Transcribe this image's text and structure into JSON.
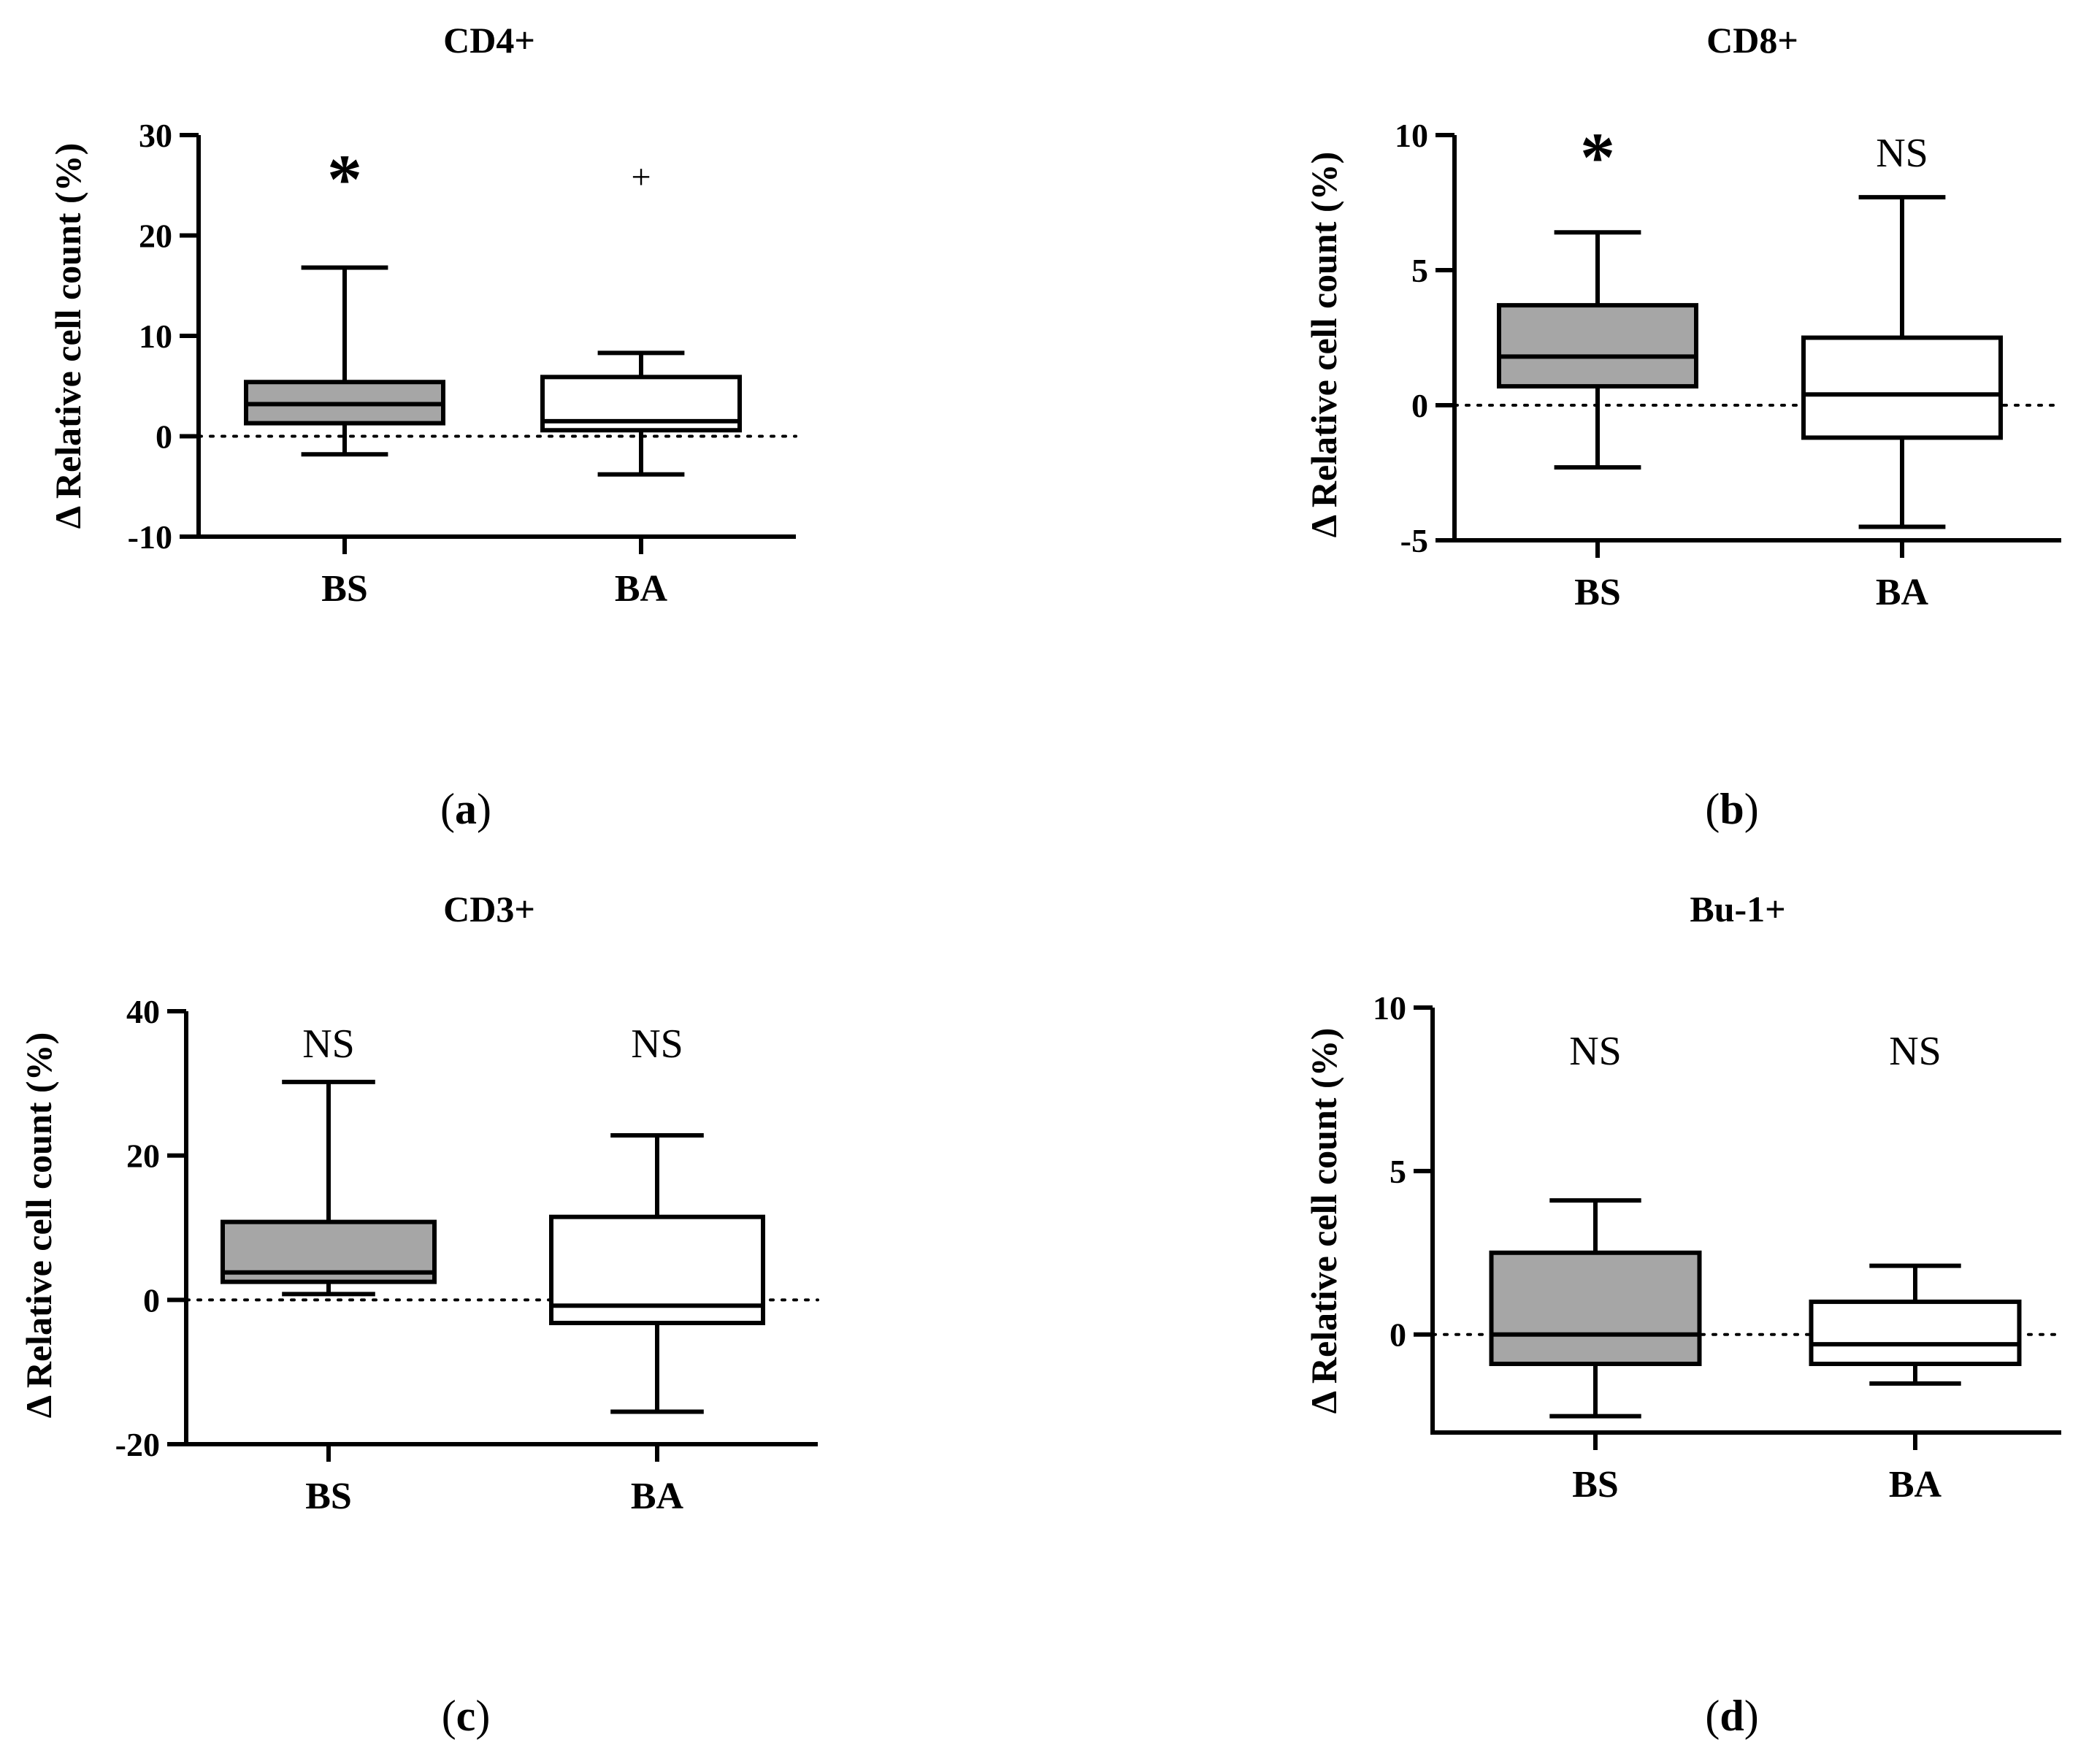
{
  "figure": {
    "panel_labels": [
      "a",
      "b",
      "c",
      "d"
    ],
    "colors": {
      "bs_fill": "#a6a6a6",
      "ba_fill": "#ffffff",
      "stroke": "#000000"
    }
  },
  "chart_data": [
    {
      "type": "boxplot",
      "panel": "a",
      "title": "CD4+",
      "ylabel": "Δ Relative cell count (%)",
      "ylim": [
        -10,
        30
      ],
      "yticks": [
        -10,
        0,
        10,
        20,
        30
      ],
      "ytick_labels": [
        "-10",
        "0",
        "10",
        "20",
        "30"
      ],
      "reference_line": 0,
      "categories": [
        "BS",
        "BA"
      ],
      "boxes": [
        {
          "category": "BS",
          "min": -1.8,
          "q1": 1.3,
          "median": 3.2,
          "q3": 5.4,
          "max": 16.8,
          "annotation": "*"
        },
        {
          "category": "BA",
          "min": -3.8,
          "q1": 0.6,
          "median": 1.5,
          "q3": 5.9,
          "max": 8.3,
          "annotation": "+"
        }
      ]
    },
    {
      "type": "boxplot",
      "panel": "b",
      "title": "CD8+",
      "ylabel": "Δ Relative cell count (%)",
      "ylim": [
        -5,
        10
      ],
      "yticks": [
        -5,
        0,
        5,
        10
      ],
      "ytick_labels": [
        "-5",
        "0",
        "5",
        "10"
      ],
      "reference_line": 0,
      "categories": [
        "BS",
        "BA"
      ],
      "boxes": [
        {
          "category": "BS",
          "min": -2.3,
          "q1": 0.7,
          "median": 1.8,
          "q3": 3.7,
          "max": 6.4,
          "annotation": "*"
        },
        {
          "category": "BA",
          "min": -4.5,
          "q1": -1.2,
          "median": 0.4,
          "q3": 2.5,
          "max": 7.7,
          "annotation": "NS"
        }
      ]
    },
    {
      "type": "boxplot",
      "panel": "c",
      "title": "CD3+",
      "ylabel": "Δ Relative cell count (%)",
      "ylim": [
        -20,
        40
      ],
      "yticks": [
        -20,
        0,
        20,
        40
      ],
      "ytick_labels": [
        "-20",
        "0",
        "20",
        "40"
      ],
      "reference_line": 0,
      "categories": [
        "BS",
        "BA"
      ],
      "boxes": [
        {
          "category": "BS",
          "min": 0.8,
          "q1": 2.5,
          "median": 3.8,
          "q3": 10.8,
          "max": 30.2,
          "annotation": "NS"
        },
        {
          "category": "BA",
          "min": -15.5,
          "q1": -3.2,
          "median": -0.8,
          "q3": 11.5,
          "max": 22.8,
          "annotation": "NS"
        }
      ]
    },
    {
      "type": "boxplot",
      "panel": "d",
      "title": "Bu-1+",
      "ylabel": "Δ Relative cell count (%)",
      "ylim": [
        -3,
        10
      ],
      "yticks": [
        0,
        5,
        10
      ],
      "ytick_labels": [
        "0",
        "5",
        "10"
      ],
      "reference_line": 0,
      "categories": [
        "BS",
        "BA"
      ],
      "boxes": [
        {
          "category": "BS",
          "min": -2.5,
          "q1": -0.9,
          "median": 0.0,
          "q3": 2.5,
          "max": 4.1,
          "annotation": "NS"
        },
        {
          "category": "BA",
          "min": -1.5,
          "q1": -0.9,
          "median": -0.3,
          "q3": 1.0,
          "max": 2.1,
          "annotation": "NS"
        }
      ]
    }
  ]
}
